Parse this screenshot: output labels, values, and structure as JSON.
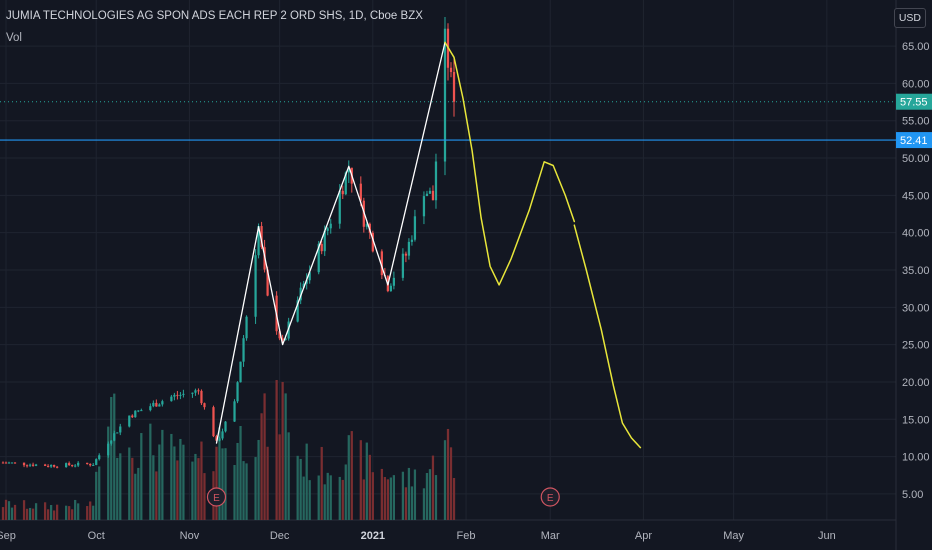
{
  "header": {
    "title": "JUMIA TECHNOLOGIES AG SPON ADS EACH REP 2 ORD SHS, 1D, Cboe BZX",
    "volume_label": "Vol",
    "currency_label": "USD"
  },
  "colors": {
    "background": "#131722",
    "grid": "#1f2430",
    "axis_text": "#b2b5be",
    "up_candle": "#26a69a",
    "down_candle": "#ef5350",
    "up_volume": "#26675f",
    "down_volume": "#7a2e31",
    "last_price": "#26a69a",
    "horizontal_line": "#2196f3",
    "drawing_white": "#ffffff",
    "drawing_yellow": "#e8e63a",
    "earnings_marker": "#d05561"
  },
  "chart_data": {
    "type": "candlestick",
    "ylim": [
      1.5,
      68.5
    ],
    "y_ticks": [
      5,
      10,
      15,
      20,
      25,
      30,
      35,
      40,
      45,
      50,
      55,
      60,
      65
    ],
    "y_tick_labels": [
      "5.00",
      "10.00",
      "15.00",
      "20.00",
      "25.00",
      "30.00",
      "35.00",
      "40.00",
      "45.00",
      "50.00",
      "55.00",
      "60.00",
      "65.00"
    ],
    "xlim": [
      "2020-08-30",
      "2021-06-24"
    ],
    "x_ticks": [
      "2020-09-01",
      "2020-10-01",
      "2020-11-01",
      "2020-12-01",
      "2021-01-01",
      "2021-02-01",
      "2021-03-01",
      "2021-04-01",
      "2021-05-01",
      "2021-06-01"
    ],
    "x_tick_labels": [
      "Sep",
      "Oct",
      "Nov",
      "Dec",
      "2021",
      "Feb",
      "Mar",
      "Apr",
      "May",
      "Jun"
    ],
    "last_price": {
      "value": 57.55,
      "label": "57.55"
    },
    "horizontal_line": {
      "value": 52.41,
      "label": "52.41"
    },
    "earnings": [
      {
        "date": "2020-11-10",
        "label": "E"
      },
      {
        "date": "2021-03-01",
        "label": "E"
      }
    ],
    "anchors": [
      {
        "date": "2020-08-31",
        "price": 9.2,
        "vol": 0.12
      },
      {
        "date": "2020-09-15",
        "price": 8.8,
        "vol": 0.1
      },
      {
        "date": "2020-09-30",
        "price": 9.0,
        "vol": 0.12
      },
      {
        "date": "2020-10-05",
        "price": 12.0,
        "vol": 0.85
      },
      {
        "date": "2020-10-12",
        "price": 15.5,
        "vol": 0.55
      },
      {
        "date": "2020-10-19",
        "price": 16.8,
        "vol": 0.55
      },
      {
        "date": "2020-10-26",
        "price": 18.0,
        "vol": 0.5
      },
      {
        "date": "2020-11-04",
        "price": 18.8,
        "vol": 0.4
      },
      {
        "date": "2020-11-10",
        "price": 11.8,
        "vol": 0.6
      },
      {
        "date": "2020-11-16",
        "price": 17.0,
        "vol": 0.55
      },
      {
        "date": "2020-11-24",
        "price": 40.8,
        "vol": 0.75
      },
      {
        "date": "2020-11-27",
        "price": 31.0,
        "vol": 0.7
      },
      {
        "date": "2020-12-02",
        "price": 25.0,
        "vol": 0.9
      },
      {
        "date": "2020-12-08",
        "price": 32.0,
        "vol": 0.45
      },
      {
        "date": "2020-12-16",
        "price": 39.5,
        "vol": 0.4
      },
      {
        "date": "2020-12-24",
        "price": 48.9,
        "vol": 0.5
      },
      {
        "date": "2020-12-29",
        "price": 42.0,
        "vol": 0.45
      },
      {
        "date": "2021-01-06",
        "price": 33.0,
        "vol": 0.35
      },
      {
        "date": "2021-01-12",
        "price": 37.0,
        "vol": 0.3
      },
      {
        "date": "2021-01-18",
        "price": 46.0,
        "vol": 0.35
      },
      {
        "date": "2021-01-21",
        "price": 44.5,
        "vol": 0.4
      },
      {
        "date": "2021-01-25",
        "price": 65.5,
        "vol": 0.75
      },
      {
        "date": "2021-01-28",
        "price": 57.55,
        "vol": 0.3
      }
    ],
    "drawings": [
      {
        "name": "zigzag-white",
        "color": "white",
        "points": [
          {
            "date": "2020-11-10",
            "price": 11.8
          },
          {
            "date": "2020-11-24",
            "price": 40.8
          },
          {
            "date": "2020-12-02",
            "price": 25.0
          },
          {
            "date": "2020-12-24",
            "price": 48.9
          },
          {
            "date": "2021-01-06",
            "price": 33.0
          },
          {
            "date": "2021-01-25",
            "price": 65.5
          }
        ]
      },
      {
        "name": "forecast-yellow-1",
        "color": "yellow",
        "points": [
          {
            "date": "2021-01-25",
            "price": 65.5
          },
          {
            "date": "2021-01-28",
            "price": 63.5
          },
          {
            "date": "2021-01-31",
            "price": 58.0
          },
          {
            "date": "2021-02-03",
            "price": 51.0
          },
          {
            "date": "2021-02-06",
            "price": 42.0
          },
          {
            "date": "2021-02-09",
            "price": 35.5
          },
          {
            "date": "2021-02-12",
            "price": 33.0
          },
          {
            "date": "2021-02-16",
            "price": 36.5
          },
          {
            "date": "2021-02-22",
            "price": 43.0
          },
          {
            "date": "2021-02-27",
            "price": 49.5
          },
          {
            "date": "2021-03-02",
            "price": 49.0
          },
          {
            "date": "2021-03-06",
            "price": 45.0
          },
          {
            "date": "2021-03-09",
            "price": 41.5
          }
        ]
      },
      {
        "name": "forecast-yellow-2",
        "color": "yellow",
        "points": [
          {
            "date": "2021-03-09",
            "price": 41.0
          },
          {
            "date": "2021-03-13",
            "price": 35.0
          },
          {
            "date": "2021-03-18",
            "price": 27.0
          },
          {
            "date": "2021-03-22",
            "price": 19.5
          },
          {
            "date": "2021-03-25",
            "price": 14.5
          },
          {
            "date": "2021-03-28",
            "price": 12.5
          },
          {
            "date": "2021-03-31",
            "price": 11.2
          }
        ]
      }
    ]
  }
}
